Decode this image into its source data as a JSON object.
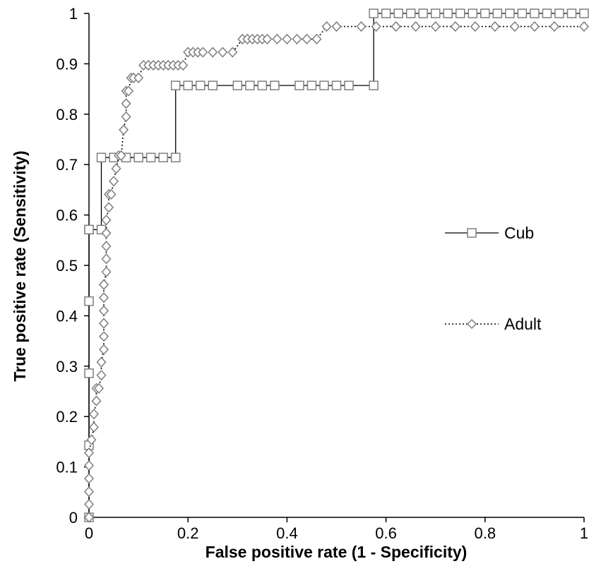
{
  "chart_data": {
    "type": "scatter",
    "xlabel": "False positive rate (1 - Specificity)",
    "ylabel": "True positive rate (Sensitivity)",
    "xlim": [
      0,
      1
    ],
    "ylim": [
      0,
      1
    ],
    "x_ticks": [
      "0",
      "0.2",
      "0.4",
      "0.6",
      "0.8",
      "1"
    ],
    "y_ticks": [
      "0",
      "0.1",
      "0.2",
      "0.3",
      "0.4",
      "0.5",
      "0.6",
      "0.7",
      "0.8",
      "0.9",
      "1"
    ],
    "grid": false,
    "legend_position": "right",
    "series": [
      {
        "name": "Cub",
        "marker": "square",
        "line": "solid",
        "color": "#000000",
        "marker_color": "#7f7f7f",
        "x": [
          0,
          0,
          0,
          0,
          0,
          0,
          0.025,
          0.025,
          0.05,
          0.075,
          0.1,
          0.125,
          0.15,
          0.175,
          0.175,
          0.2,
          0.225,
          0.25,
          0.3,
          0.325,
          0.35,
          0.375,
          0.425,
          0.45,
          0.475,
          0.5,
          0.525,
          0.575,
          0.575,
          0.6,
          0.625,
          0.65,
          0.675,
          0.7,
          0.725,
          0.75,
          0.775,
          0.8,
          0.825,
          0.85,
          0.875,
          0.9,
          0.925,
          0.95,
          0.975,
          1.0
        ],
        "y": [
          0,
          0.143,
          0.286,
          0.429,
          0.571,
          0.571,
          0.571,
          0.714,
          0.714,
          0.714,
          0.714,
          0.714,
          0.714,
          0.714,
          0.857,
          0.857,
          0.857,
          0.857,
          0.857,
          0.857,
          0.857,
          0.857,
          0.857,
          0.857,
          0.857,
          0.857,
          0.857,
          0.857,
          1,
          1,
          1,
          1,
          1,
          1,
          1,
          1,
          1,
          1,
          1,
          1,
          1,
          1,
          1,
          1,
          1,
          1
        ]
      },
      {
        "name": "Adult",
        "marker": "diamond",
        "line": "dotted",
        "color": "#000000",
        "marker_color": "#7f7f7f",
        "x": [
          0,
          0,
          0,
          0,
          0,
          0,
          0.005,
          0.01,
          0.01,
          0.015,
          0.015,
          0.02,
          0.025,
          0.025,
          0.03,
          0.03,
          0.03,
          0.03,
          0.03,
          0.03,
          0.03,
          0.035,
          0.035,
          0.035,
          0.035,
          0.035,
          0.04,
          0.04,
          0.045,
          0.05,
          0.055,
          0.06,
          0.065,
          0.07,
          0.075,
          0.075,
          0.075,
          0.08,
          0.085,
          0.09,
          0.1,
          0.11,
          0.12,
          0.13,
          0.14,
          0.15,
          0.16,
          0.17,
          0.18,
          0.19,
          0.2,
          0.21,
          0.22,
          0.23,
          0.25,
          0.27,
          0.29,
          0.31,
          0.32,
          0.33,
          0.34,
          0.35,
          0.36,
          0.38,
          0.4,
          0.42,
          0.44,
          0.46,
          0.48,
          0.5,
          0.55,
          0.58,
          0.62,
          0.66,
          0.7,
          0.74,
          0.78,
          0.82,
          0.86,
          0.9,
          0.94,
          1.0
        ],
        "y": [
          0,
          0.026,
          0.051,
          0.077,
          0.103,
          0.128,
          0.154,
          0.179,
          0.205,
          0.231,
          0.256,
          0.256,
          0.282,
          0.308,
          0.333,
          0.359,
          0.385,
          0.41,
          0.436,
          0.462,
          0.462,
          0.487,
          0.513,
          0.538,
          0.564,
          0.59,
          0.615,
          0.641,
          0.641,
          0.667,
          0.692,
          0.718,
          0.718,
          0.769,
          0.795,
          0.821,
          0.846,
          0.846,
          0.872,
          0.872,
          0.872,
          0.897,
          0.897,
          0.897,
          0.897,
          0.897,
          0.897,
          0.897,
          0.897,
          0.897,
          0.923,
          0.923,
          0.923,
          0.923,
          0.923,
          0.923,
          0.923,
          0.949,
          0.949,
          0.949,
          0.949,
          0.949,
          0.949,
          0.949,
          0.949,
          0.949,
          0.949,
          0.949,
          0.974,
          0.974,
          0.974,
          0.974,
          0.974,
          0.974,
          0.974,
          0.974,
          0.974,
          0.974,
          0.974,
          0.974,
          0.974,
          0.974
        ]
      }
    ]
  }
}
